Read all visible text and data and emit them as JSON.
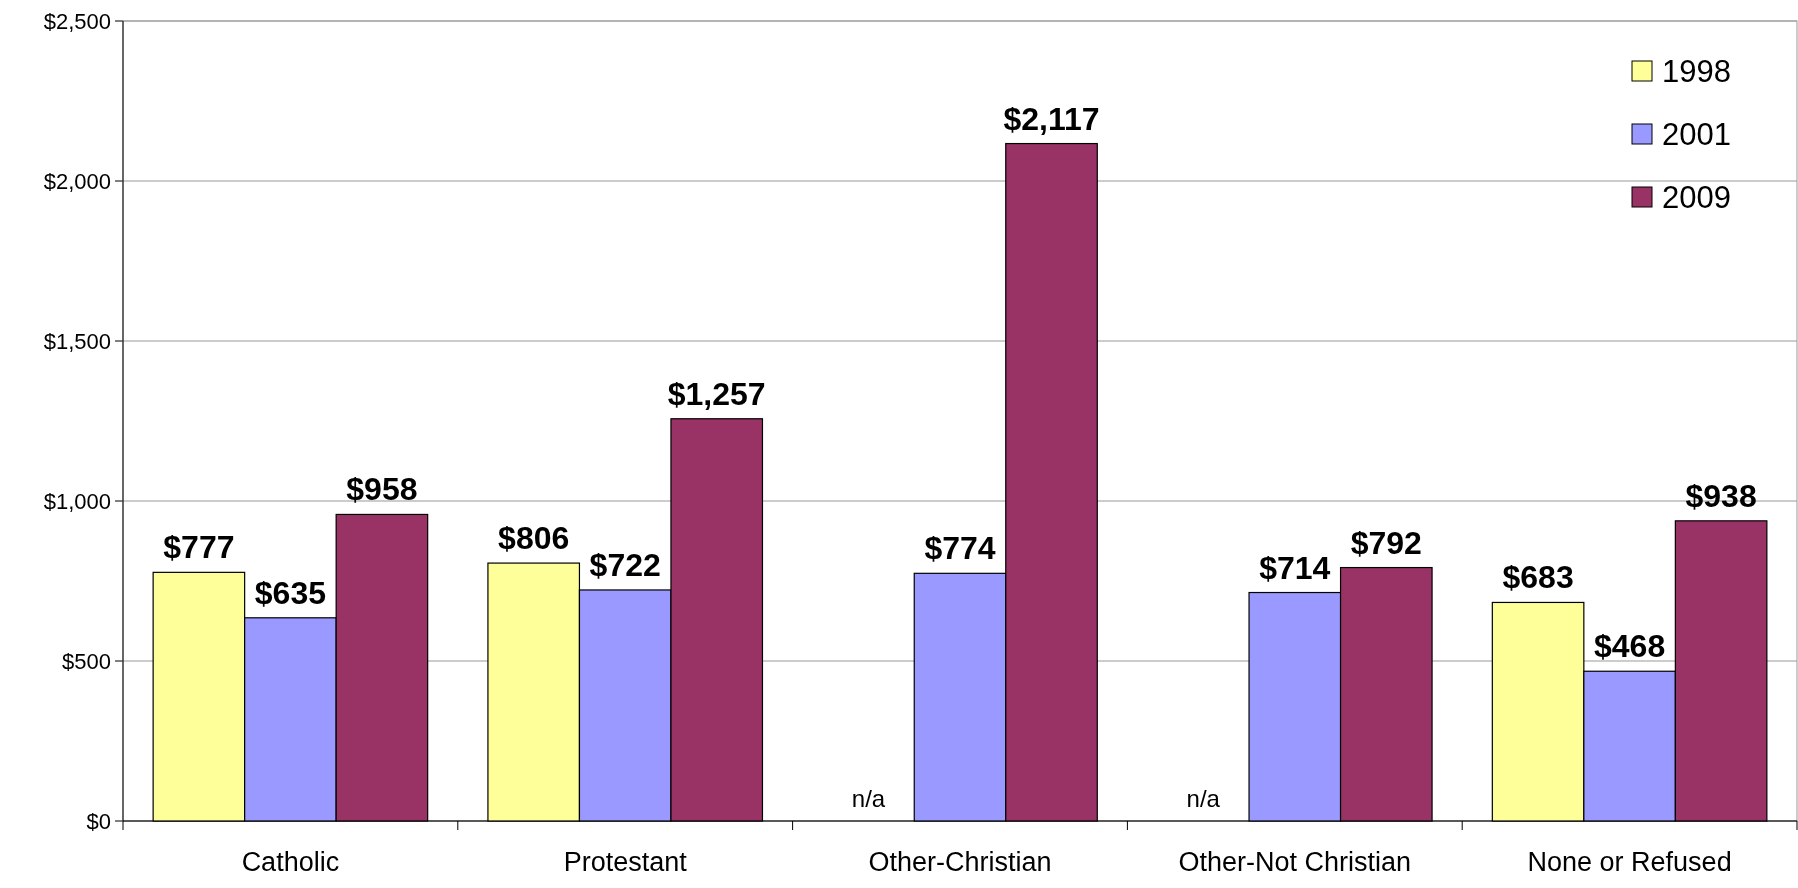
{
  "chart_data": {
    "type": "bar",
    "categories": [
      "Catholic",
      "Protestant",
      "Other-Christian",
      "Other-Not Christian",
      "None or Refused"
    ],
    "series": [
      {
        "name": "1998",
        "color": "#ffff99",
        "values": [
          777,
          806,
          null,
          null,
          683
        ],
        "value_labels": [
          "$777",
          "$806",
          "n/a",
          "n/a",
          "$683"
        ]
      },
      {
        "name": "2001",
        "color": "#9999ff",
        "values": [
          635,
          722,
          774,
          714,
          468
        ],
        "value_labels": [
          "$635",
          "$722",
          "$774",
          "$714",
          "$468"
        ]
      },
      {
        "name": "2009",
        "color": "#993366",
        "values": [
          958,
          1257,
          2117,
          792,
          938
        ],
        "value_labels": [
          "$958",
          "$1,257",
          "$2,117",
          "$792",
          "$938"
        ]
      }
    ],
    "ylim": [
      0,
      2500
    ],
    "yticks": [
      {
        "value": 0,
        "label": "$0"
      },
      {
        "value": 500,
        "label": "$500"
      },
      {
        "value": 1000,
        "label": "$1,000"
      },
      {
        "value": 1500,
        "label": "$1,500"
      },
      {
        "value": 2000,
        "label": "$2,000"
      },
      {
        "value": 2500,
        "label": "$2,500"
      }
    ],
    "grid": "y",
    "legend": "top right"
  }
}
